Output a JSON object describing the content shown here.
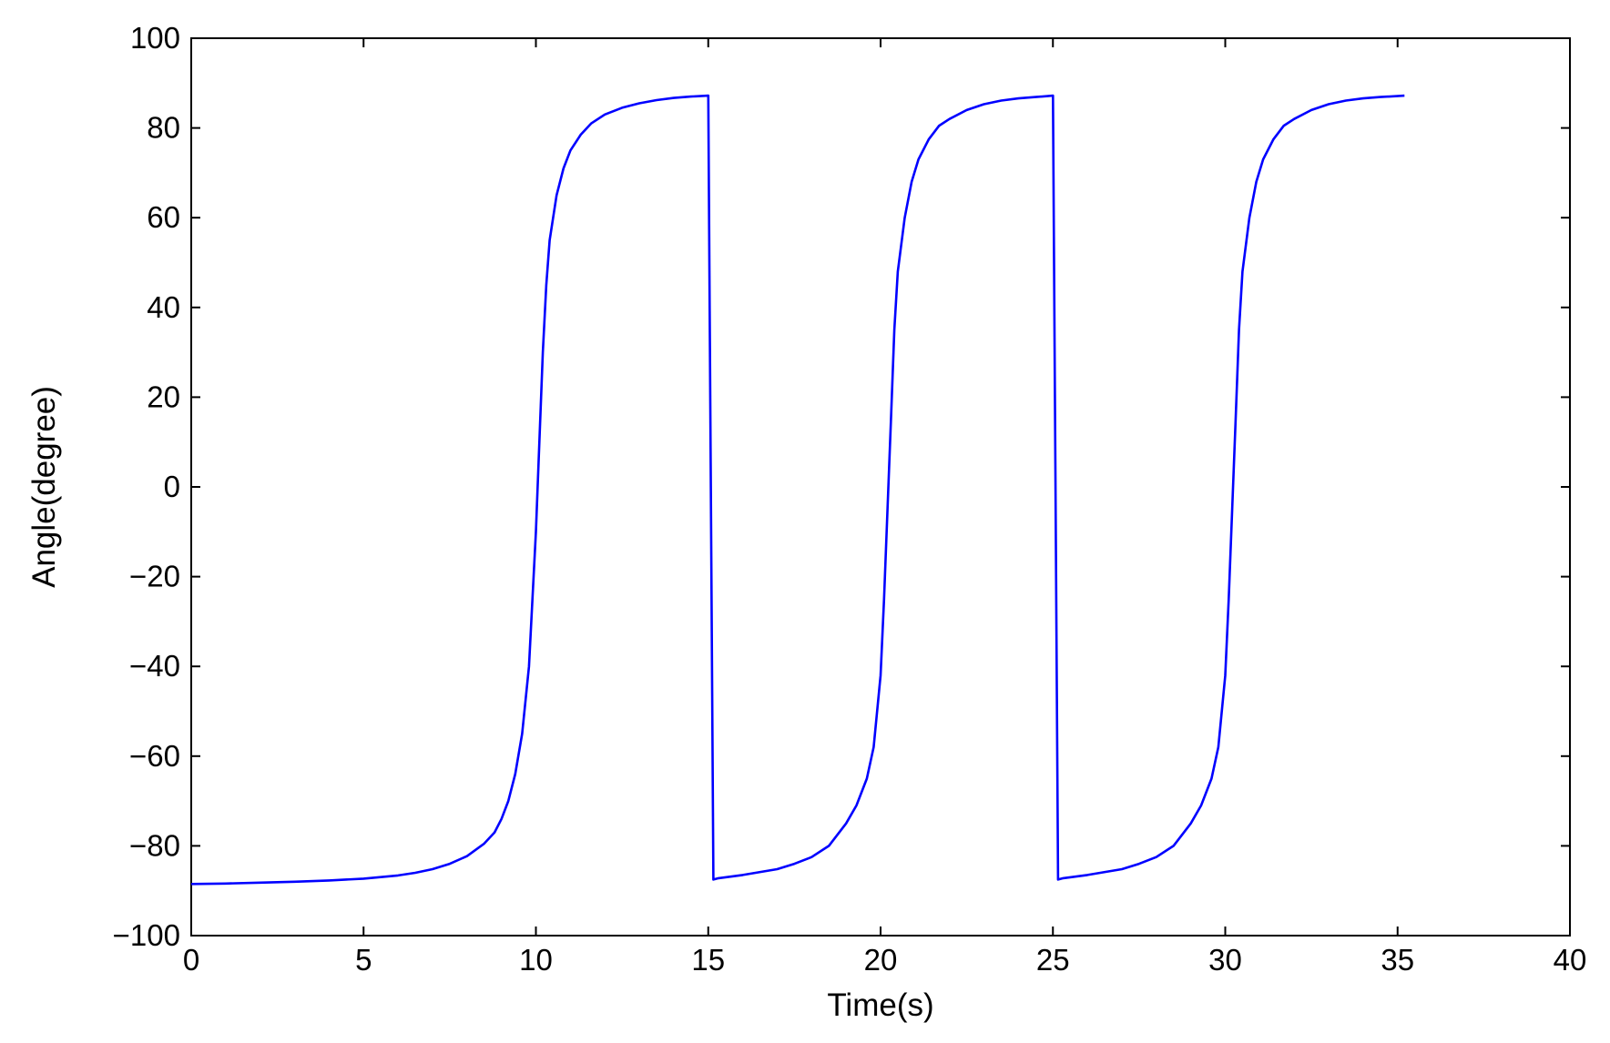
{
  "chart_data": {
    "type": "line",
    "title": "",
    "xlabel": "Time(s)",
    "ylabel": "Angle(degree)",
    "xlim": [
      0,
      40
    ],
    "ylim": [
      -100,
      100
    ],
    "xticks": [
      0,
      5,
      10,
      15,
      20,
      25,
      30,
      35,
      40
    ],
    "xtick_labels": [
      "0",
      "5",
      "10",
      "15",
      "20",
      "25",
      "30",
      "35",
      "40"
    ],
    "yticks": [
      100,
      80,
      60,
      40,
      20,
      0,
      -20,
      -40,
      -60,
      -80,
      -100
    ],
    "ytick_labels": [
      "100",
      "80",
      "60",
      "40",
      "20",
      "0",
      "−20",
      "−40",
      "−60",
      "−80",
      "−100"
    ],
    "grid": false,
    "legend": "none",
    "series": [
      {
        "color": "#0000ff",
        "x": [
          0,
          1,
          2,
          3,
          4,
          5,
          6,
          6.5,
          7,
          7.5,
          8,
          8.5,
          8.8,
          9.0,
          9.2,
          9.4,
          9.6,
          9.8,
          10.0,
          10.1,
          10.2,
          10.3,
          10.4,
          10.6,
          10.8,
          11.0,
          11.3,
          11.6,
          12.0,
          12.5,
          13.0,
          13.5,
          14.0,
          14.5,
          15.0,
          15.15,
          15.3,
          16,
          17,
          17.5,
          18,
          18.5,
          19,
          19.3,
          19.6,
          19.8,
          20.0,
          20.1,
          20.2,
          20.3,
          20.4,
          20.5,
          20.7,
          20.9,
          21.1,
          21.4,
          21.7,
          22.0,
          22.5,
          23,
          23.5,
          24,
          24.5,
          25.0,
          25.15,
          25.3,
          26,
          27,
          27.5,
          28,
          28.5,
          29,
          29.3,
          29.6,
          29.8,
          30.0,
          30.1,
          30.2,
          30.3,
          30.4,
          30.5,
          30.7,
          30.9,
          31.1,
          31.4,
          31.7,
          32.0,
          32.5,
          33,
          33.5,
          34,
          34.5,
          35.2
        ],
        "y": [
          -88.5,
          -88.4,
          -88.2,
          -88.0,
          -87.7,
          -87.3,
          -86.6,
          -86.0,
          -85.2,
          -84.0,
          -82.3,
          -79.5,
          -77,
          -74,
          -70,
          -64,
          -55,
          -40,
          -10,
          10,
          30,
          45,
          55,
          65,
          71,
          75,
          78.5,
          81,
          83,
          84.5,
          85.5,
          86.2,
          86.7,
          87.0,
          87.2,
          -87.5,
          -87.2,
          -86.5,
          -85.2,
          -84.0,
          -82.5,
          -80,
          -75,
          -71,
          -65,
          -58,
          -42,
          -25,
          -5,
          15,
          35,
          48,
          60,
          68,
          73,
          77.5,
          80.5,
          82,
          84,
          85.3,
          86.1,
          86.6,
          86.9,
          87.2,
          -87.5,
          -87.2,
          -86.5,
          -85.2,
          -84.0,
          -82.5,
          -80,
          -75,
          -71,
          -65,
          -58,
          -42,
          -25,
          -5,
          15,
          35,
          48,
          60,
          68,
          73,
          77.5,
          80.5,
          82,
          84,
          85.3,
          86.1,
          86.6,
          86.9,
          87.2
        ]
      }
    ]
  }
}
